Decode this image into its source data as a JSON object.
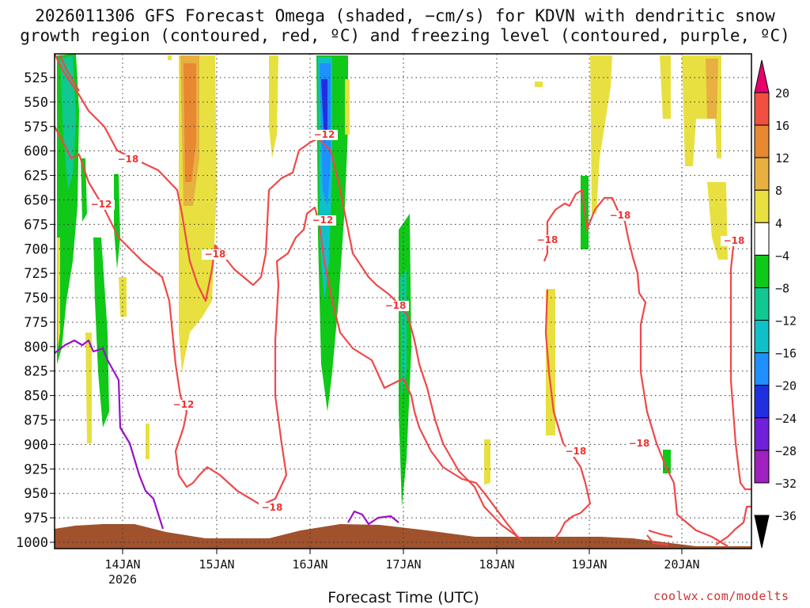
{
  "title_line1": "2026011306 GFS Forecast Omega (shaded, −cm/s) for KDVN with dendritic snow",
  "title_line2": "growth region (contoured, red, ºC) and freezing level (contoured, purple, ºC)",
  "xaxis_title": "Forecast Time (UTC)",
  "credit": "coolwx.com/modelts",
  "chart_data": {
    "type": "heatmap",
    "title": "2026011306 GFS Forecast Omega (shaded, −cm/s) for KDVN with dendritic snow growth region (contoured, red, ºC) and freezing level (contoured, purple, ºC)",
    "xlabel": "Forecast Time (UTC)",
    "ylabel": "",
    "x_ticks": [
      "14JAN",
      "15JAN",
      "16JAN",
      "17JAN",
      "18JAN",
      "19JAN",
      "20JAN"
    ],
    "x_tick_sublabel": "2026",
    "y_ticks": [
      525,
      550,
      575,
      600,
      625,
      650,
      675,
      700,
      725,
      750,
      775,
      800,
      825,
      850,
      875,
      900,
      925,
      950,
      975,
      1000
    ],
    "ylim": [
      1000,
      500
    ],
    "grid": true,
    "colorbar": {
      "levels": [
        -36,
        -32,
        -28,
        -24,
        -20,
        -16,
        -12,
        -8,
        -4,
        4,
        8,
        12,
        16,
        20
      ],
      "colors": [
        "#a0a0a0",
        "#a020c0",
        "#7020d8",
        "#2030e0",
        "#1e90ff",
        "#10c0c8",
        "#10c890",
        "#10c818",
        "#ffffff",
        "#e8e040",
        "#e8b040",
        "#e88830",
        "#f05040",
        "#e8006c"
      ],
      "label_ticks": [
        "20",
        "16",
        "12",
        "8",
        "4",
        "−4",
        "−8",
        "−12",
        "−16",
        "−20",
        "−24",
        "−28",
        "−32",
        "−36"
      ]
    },
    "contour_labels": {
      "dendritic": [
        "−18",
        "−12",
        "−18",
        "−12",
        "−12",
        "−12",
        "−18",
        "−18",
        "−18",
        "−18",
        "−18",
        "−18"
      ]
    },
    "series": [
      {
        "name": "dendritic snow growth region (red, ºC)",
        "levels": [
          -18,
          -12
        ]
      },
      {
        "name": "freezing level (purple, ºC)",
        "levels": [
          0
        ]
      },
      {
        "name": "Omega (shaded, −cm/s)",
        "levels": "see colorbar"
      }
    ]
  }
}
